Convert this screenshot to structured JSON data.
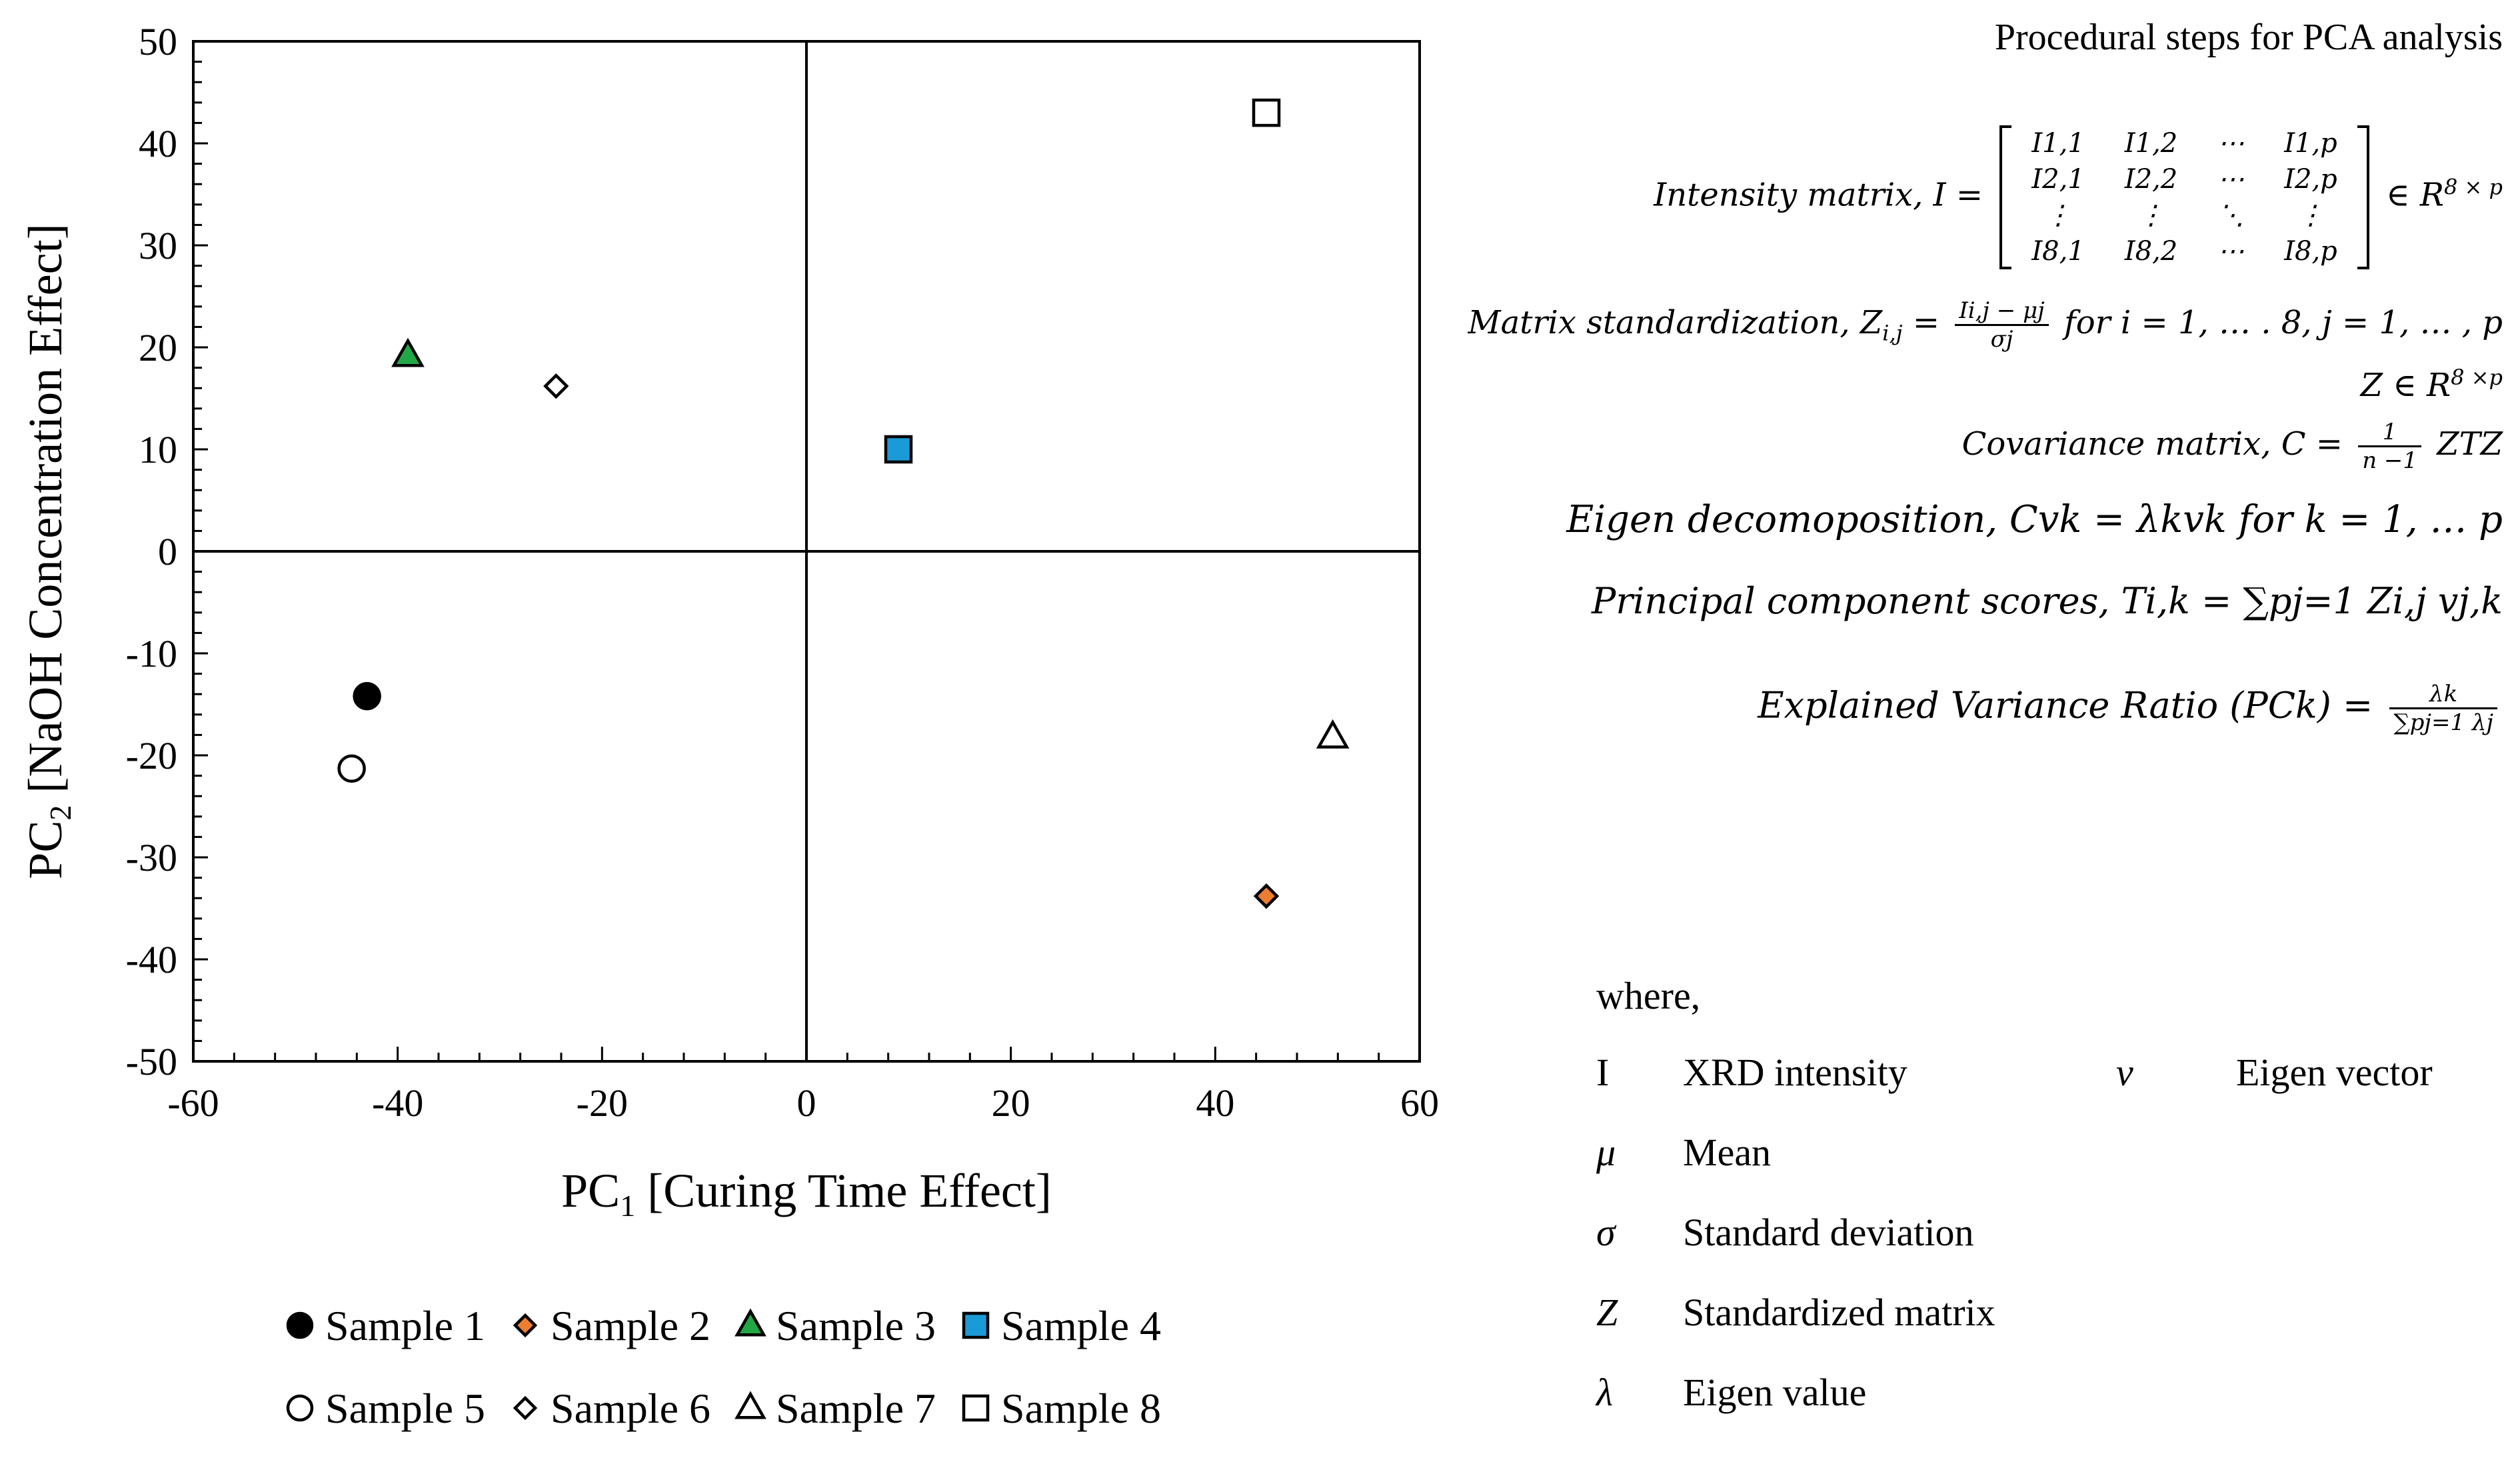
{
  "chart_data": {
    "type": "scatter",
    "xlabel_main": "PC",
    "xlabel_sub": "1",
    "xlabel_rest": " [Curing Time Effect]",
    "ylabel_main": "PC",
    "ylabel_sub": "2",
    "ylabel_rest": " [NaOH Concentration Effect]",
    "xlim": [
      -60,
      60
    ],
    "ylim": [
      -50,
      50
    ],
    "xticks": [
      -60,
      -40,
      -20,
      0,
      20,
      40,
      60
    ],
    "yticks": [
      50,
      40,
      30,
      20,
      10,
      0,
      -10,
      -20,
      -30,
      -40,
      -50
    ],
    "series": [
      {
        "name": "Sample 1",
        "x": -43,
        "y": -14.2,
        "marker": "circle",
        "fill": "#000000"
      },
      {
        "name": "Sample 2",
        "x": 45,
        "y": -33.8,
        "marker": "diamond",
        "fill": "#ED7D31"
      },
      {
        "name": "Sample 3",
        "x": -39,
        "y": 19.2,
        "marker": "triangle",
        "fill": "#22A746"
      },
      {
        "name": "Sample 4",
        "x": 9,
        "y": 10,
        "marker": "square",
        "fill": "#1A9AD6"
      },
      {
        "name": "Sample 5",
        "x": -44.5,
        "y": -21.3,
        "marker": "circle",
        "fill": "#FFFFFF"
      },
      {
        "name": "Sample 6",
        "x": -24.5,
        "y": 16.2,
        "marker": "diamond",
        "fill": "#FFFFFF"
      },
      {
        "name": "Sample 7",
        "x": 51.5,
        "y": -18.2,
        "marker": "triangle",
        "fill": "#FFFFFF"
      },
      {
        "name": "Sample 8",
        "x": 45,
        "y": 43,
        "marker": "square",
        "fill": "#FFFFFF"
      }
    ]
  },
  "panel": {
    "title": "Procedural steps for PCA analysis",
    "intensity_label": "Intensity matrix,  I =",
    "matrix": [
      [
        "I1,1",
        "I1,2",
        "⋯",
        "I1,p"
      ],
      [
        "I2,1",
        "I2,2",
        "⋯",
        "I2,p"
      ],
      [
        "⋮",
        "⋮",
        "⋱",
        "⋮"
      ],
      [
        "I8,1",
        "I8,2",
        "⋯",
        "I8,p"
      ]
    ],
    "intensity_suffix": "∈  R",
    "intensity_sup": "8 × p",
    "std_label": "Matrix standardization, Z",
    "std_sub": "i,j",
    "std_eq": " =",
    "std_num": "Ii,j − μj",
    "std_den": "σj",
    "std_range": "for i = 1, … . 8, j =  1, … , p",
    "z_label": "Z  ∈  R",
    "z_sup": "8 ×p",
    "cov_label": "Covariance matrix, C =",
    "cov_num": "1",
    "cov_den": "n −1",
    "cov_rest": " ZTZ",
    "eigen_label": "Eigen decomoposition, Cvk =  λkvk for k = 1, … p",
    "scores_label": "Principal component scores, Ti,k =  ∑pj=1 Zi,j vj,k",
    "evr_label": "Explained Variance Ratio (PCk) =",
    "evr_num": "λk",
    "evr_den": "∑pj=1 λj",
    "where": "where,",
    "glossary": [
      {
        "sym": "I",
        "def": "XRD intensity",
        "sym2": "v",
        "def2": "Eigen vector"
      },
      {
        "sym": "μ",
        "def": "Mean",
        "sym2": "",
        "def2": ""
      },
      {
        "sym": "σ",
        "def": "Standard deviation",
        "sym2": "",
        "def2": ""
      },
      {
        "sym": "Z",
        "def": "Standardized matrix",
        "sym2": "",
        "def2": ""
      },
      {
        "sym": "λ",
        "def": "Eigen value",
        "sym2": "",
        "def2": ""
      }
    ]
  }
}
